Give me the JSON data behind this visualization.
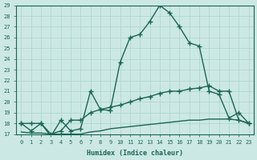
{
  "xlabel": "Humidex (Indice chaleur)",
  "ylabel": "",
  "bg_color": "#cce8e4",
  "grid_color": "#aad4cc",
  "line_color": "#1a6655",
  "xlim": [
    -0.5,
    23.5
  ],
  "ylim": [
    17,
    29
  ],
  "yticks": [
    17,
    18,
    19,
    20,
    21,
    22,
    23,
    24,
    25,
    26,
    27,
    28,
    29
  ],
  "xticks": [
    0,
    1,
    2,
    3,
    4,
    5,
    6,
    7,
    8,
    9,
    10,
    11,
    12,
    13,
    14,
    15,
    16,
    17,
    18,
    19,
    20,
    21,
    22,
    23
  ],
  "main_x": [
    0,
    1,
    2,
    3,
    4,
    5,
    6,
    7,
    8,
    9,
    10,
    11,
    12,
    13,
    14,
    15,
    16,
    17,
    18,
    19,
    20,
    21,
    22,
    23
  ],
  "main_y": [
    18,
    17.3,
    18,
    16.8,
    18.3,
    17.3,
    17.5,
    21.0,
    19.3,
    19.2,
    23.7,
    26.0,
    26.3,
    27.5,
    29.0,
    28.3,
    27.0,
    25.5,
    25.2,
    21.0,
    20.7,
    18.5,
    19.0,
    18.0
  ],
  "line2_x": [
    0,
    1,
    2,
    3,
    4,
    5,
    6,
    7,
    8,
    9,
    10,
    11,
    12,
    13,
    14,
    15,
    16,
    17,
    18,
    19,
    20,
    21,
    22,
    23
  ],
  "line2_y": [
    18.0,
    18.0,
    18.0,
    17.0,
    17.3,
    18.3,
    18.3,
    19.0,
    19.3,
    19.5,
    19.7,
    20.0,
    20.3,
    20.5,
    20.8,
    21.0,
    21.0,
    21.2,
    21.3,
    21.5,
    21.0,
    21.0,
    18.3,
    18.0
  ],
  "line3_x": [
    0,
    1,
    2,
    3,
    4,
    5,
    6,
    7,
    8,
    9,
    10,
    11,
    12,
    13,
    14,
    15,
    16,
    17,
    18,
    19,
    20,
    21,
    22,
    23
  ],
  "line3_y": [
    17.2,
    17.1,
    17.1,
    17.0,
    17.0,
    17.0,
    17.0,
    17.2,
    17.3,
    17.5,
    17.6,
    17.7,
    17.8,
    17.9,
    18.0,
    18.1,
    18.2,
    18.3,
    18.3,
    18.4,
    18.4,
    18.4,
    18.3,
    18.0
  ]
}
